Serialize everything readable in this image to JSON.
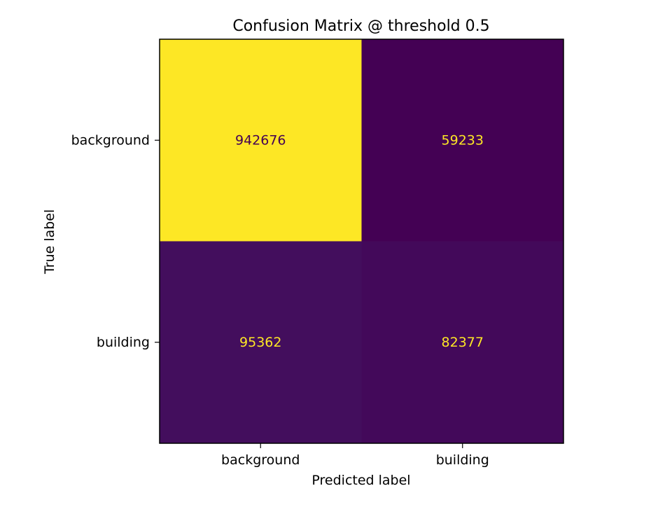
{
  "chart_data": {
    "type": "heatmap",
    "title": "Confusion Matrix @ threshold 0.5",
    "xlabel": "Predicted label",
    "ylabel": "True label",
    "x_categories": [
      "background",
      "building"
    ],
    "y_categories": [
      "background",
      "building"
    ],
    "values": [
      [
        942676,
        59233
      ],
      [
        95362,
        82377
      ]
    ],
    "colormap": "viridis",
    "colorbar": false,
    "grid": false,
    "colors": {
      "low": "#440154",
      "high": "#fde725"
    }
  }
}
